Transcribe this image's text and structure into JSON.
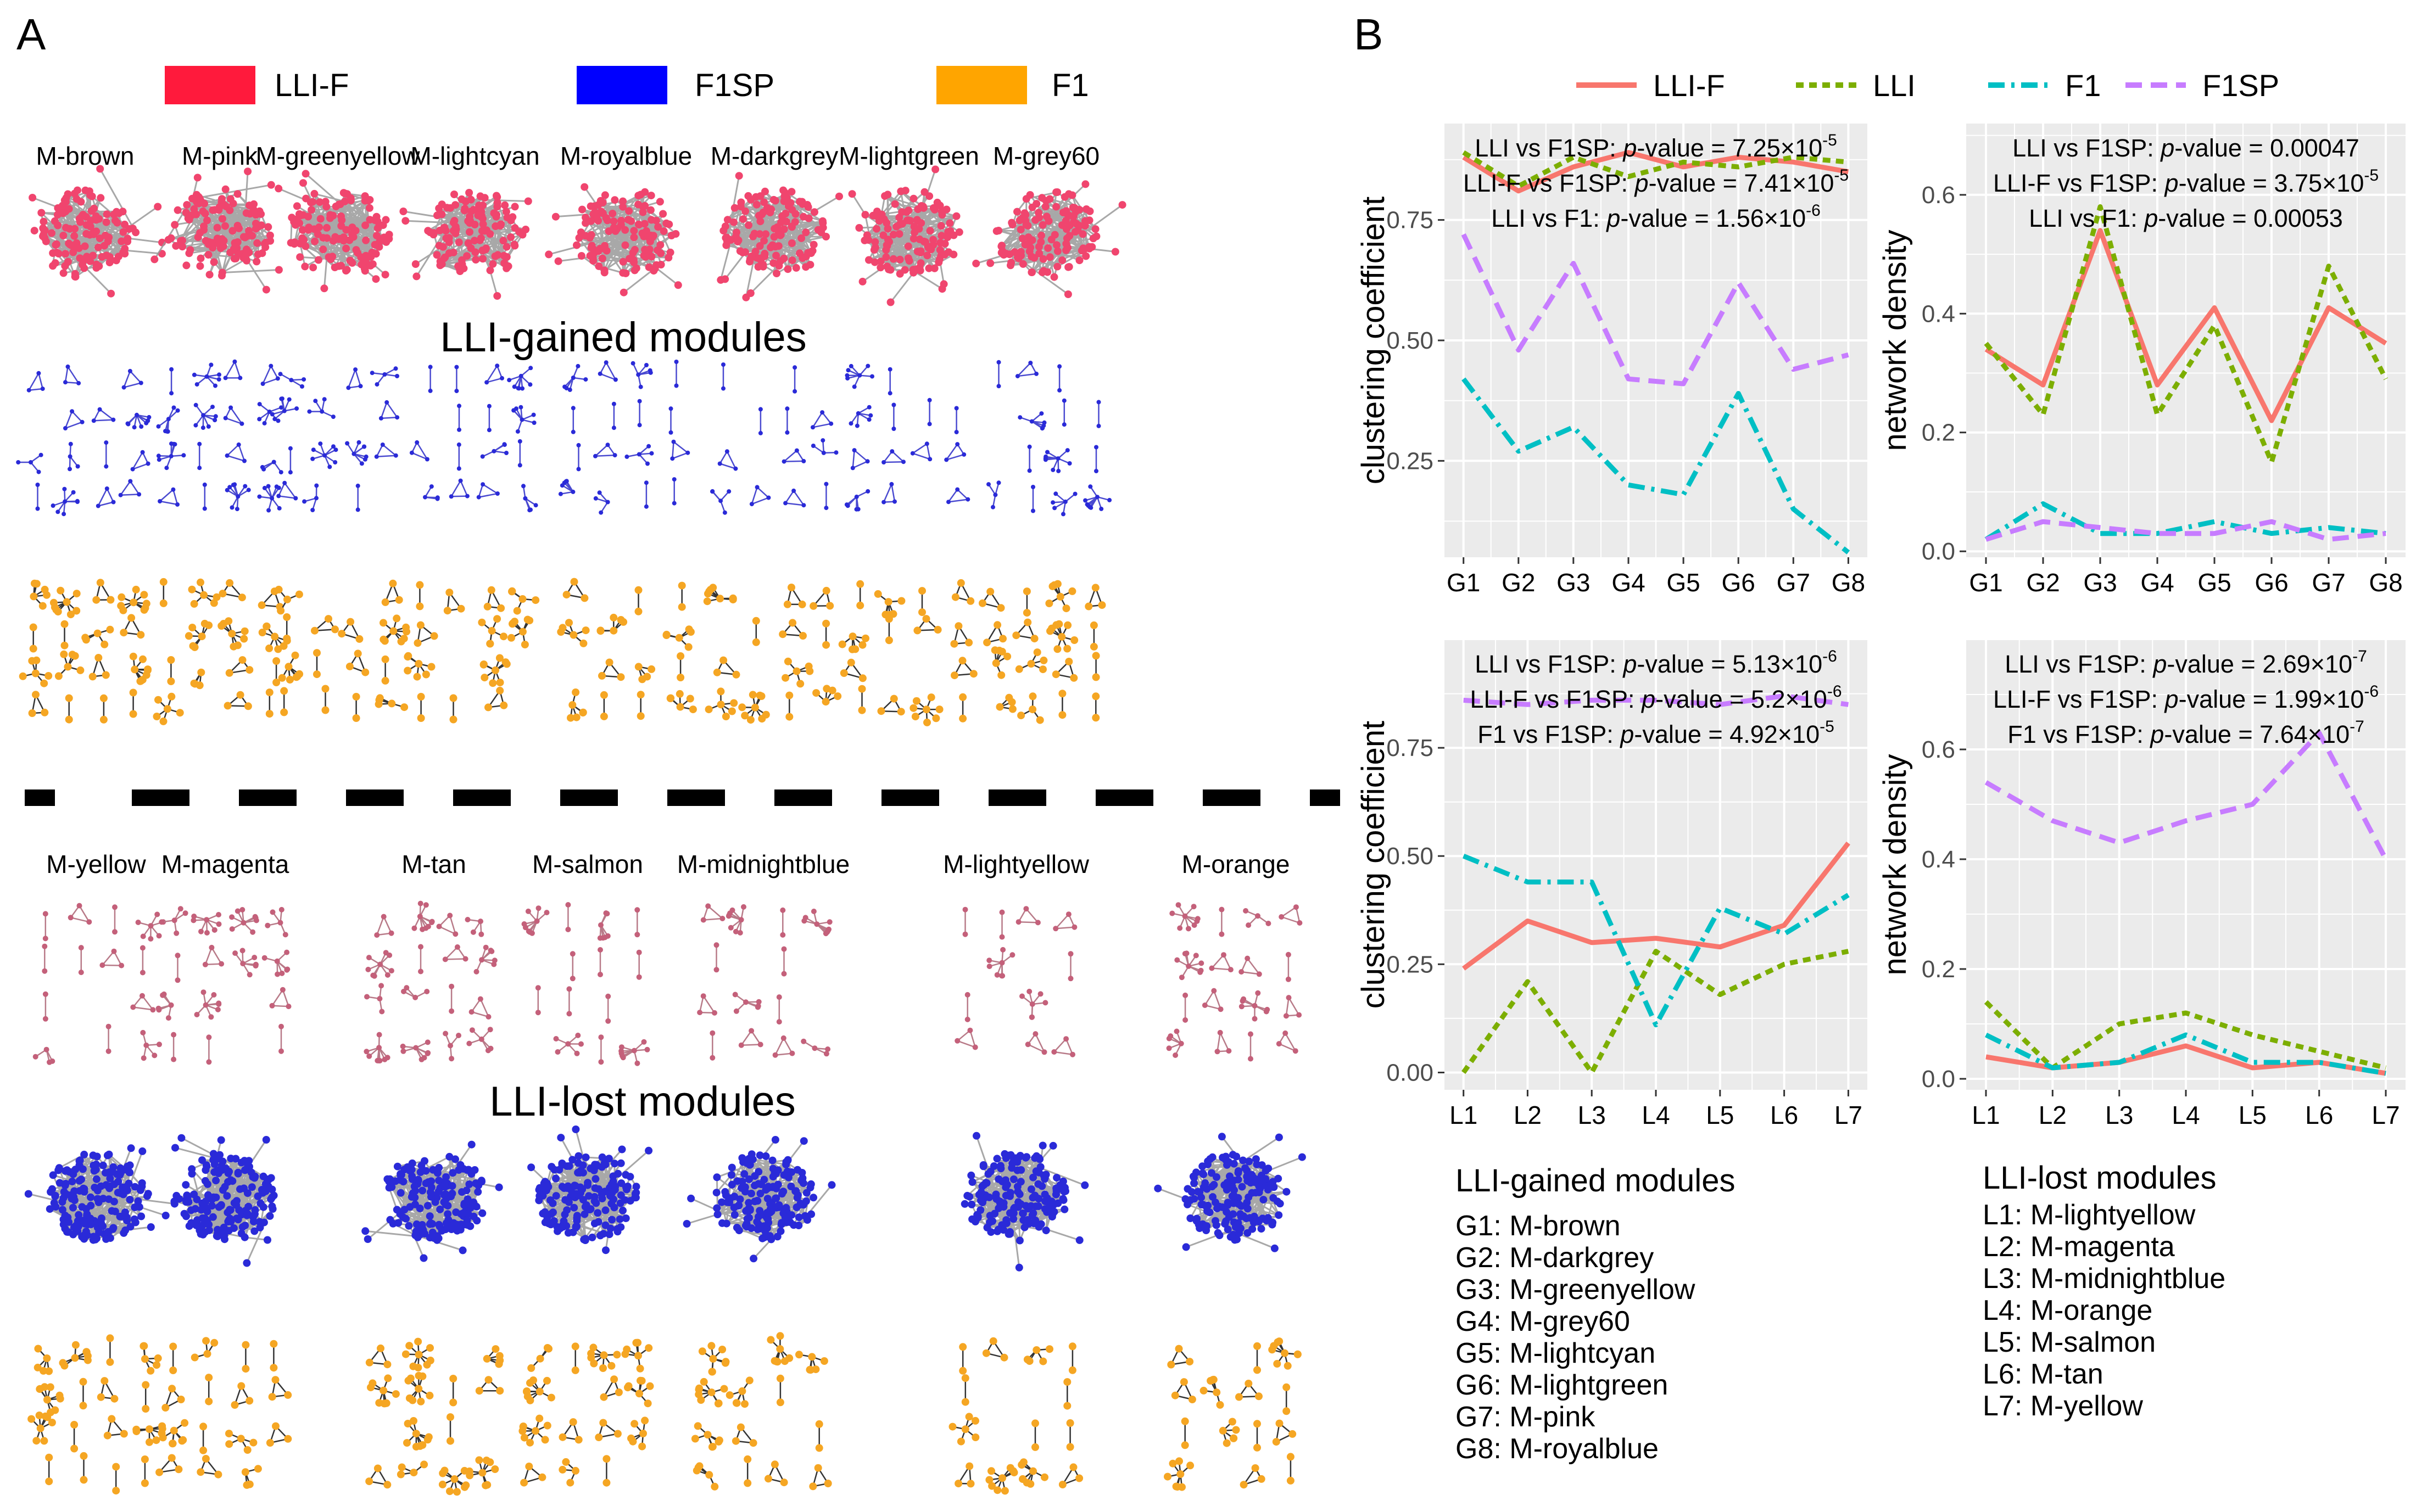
{
  "panel_a": {
    "panel_label": "A",
    "legend": [
      {
        "label": "LLI-F",
        "color": "#ff1a3c"
      },
      {
        "label": "F1SP",
        "color": "#0000ff"
      },
      {
        "label": "F1",
        "color": "#ffa500"
      }
    ],
    "gained_title": "LLI-gained modules",
    "lost_title": "LLI-lost modules",
    "gained_modules": [
      "M-brown",
      "M-pink",
      "M-greenyellow",
      "M-lightcyan",
      "M-royalblue",
      "M-darkgrey",
      "M-lightgreen",
      "M-grey60"
    ],
    "lost_modules": [
      "M-yellow",
      "M-magenta",
      "M-tan",
      "M-salmon",
      "M-midnightblue",
      "M-lightyellow",
      "M-orange"
    ],
    "colors": {
      "lli_f_node": "#f0456e",
      "f1sp_node": "#2a2ad8",
      "f1_node": "#f5a623",
      "lost_sparse_node": "#c4607a",
      "edge": "#999999"
    }
  },
  "panel_b": {
    "panel_label": "B",
    "legend": [
      {
        "label": "LLI-F",
        "color": "#f8766d",
        "dash": "solid"
      },
      {
        "label": "LLI",
        "color": "#7cae00",
        "dash": "dotted"
      },
      {
        "label": "F1",
        "color": "#00bfc4",
        "dash": "dashdot"
      },
      {
        "label": "F1SP",
        "color": "#c77cff",
        "dash": "dashed"
      }
    ],
    "gained_legend_title": "LLI-gained modules",
    "gained_legend": [
      "G1: M-brown",
      "G2: M-darkgrey",
      "G3: M-greenyellow",
      "G4: M-grey60",
      "G5: M-lightcyan",
      "G6: M-lightgreen",
      "G7: M-pink",
      "G8: M-royalblue"
    ],
    "lost_legend_title": "LLI-lost modules",
    "lost_legend": [
      "L1: M-lightyellow",
      "L2: M-magenta",
      "L3: M-midnightblue",
      "L4: M-orange",
      "L5: M-salmon",
      "L6: M-tan",
      "L7: M-yellow"
    ]
  },
  "chart_data": [
    {
      "type": "line",
      "ylabel": "clustering coefficient",
      "categories": [
        "G1",
        "G2",
        "G3",
        "G4",
        "G5",
        "G6",
        "G7",
        "G8"
      ],
      "ylim": [
        0.05,
        0.95
      ],
      "yticks": [
        "0.25",
        "0.50",
        "0.75"
      ],
      "ytick_values": [
        0.25,
        0.5,
        0.75
      ],
      "grid": true,
      "annotations": [
        {
          "pair": "LLI vs F1SP:",
          "pv": "p",
          "rest": "-value = 7.25×10",
          "exp": "-5"
        },
        {
          "pair": "LLI-F vs F1SP:",
          "pv": "p",
          "rest": "-value = 7.41×10",
          "exp": "-5"
        },
        {
          "pair": "LLI vs F1:",
          "pv": "p",
          "rest": "-value = 1.56×10",
          "exp": "-6"
        }
      ],
      "series": [
        {
          "name": "LLI-F",
          "values": [
            0.88,
            0.81,
            0.86,
            0.89,
            0.86,
            0.88,
            0.87,
            0.85
          ]
        },
        {
          "name": "LLI",
          "values": [
            0.89,
            0.82,
            0.88,
            0.84,
            0.87,
            0.86,
            0.88,
            0.87
          ]
        },
        {
          "name": "F1",
          "values": [
            0.42,
            0.27,
            0.32,
            0.2,
            0.18,
            0.39,
            0.15,
            0.06
          ]
        },
        {
          "name": "F1SP",
          "values": [
            0.72,
            0.48,
            0.66,
            0.42,
            0.41,
            0.62,
            0.44,
            0.47
          ]
        }
      ]
    },
    {
      "type": "line",
      "ylabel": "network density",
      "categories": [
        "G1",
        "G2",
        "G3",
        "G4",
        "G5",
        "G6",
        "G7",
        "G8"
      ],
      "ylim": [
        -0.01,
        0.72
      ],
      "yticks": [
        "0.0",
        "0.2",
        "0.4",
        "0.6"
      ],
      "ytick_values": [
        0,
        0.2,
        0.4,
        0.6
      ],
      "grid": true,
      "annotations": [
        {
          "pair": "LLI vs F1SP:",
          "pv": "p",
          "rest": "-value = 0.00047",
          "exp": ""
        },
        {
          "pair": "LLI-F vs F1SP:",
          "pv": "p",
          "rest": "-value = 3.75×10",
          "exp": "-5"
        },
        {
          "pair": "LLI vs F1:",
          "pv": "p",
          "rest": "-value = 0.00053",
          "exp": ""
        }
      ],
      "series": [
        {
          "name": "LLI-F",
          "values": [
            0.34,
            0.28,
            0.54,
            0.28,
            0.41,
            0.22,
            0.41,
            0.35
          ]
        },
        {
          "name": "LLI",
          "values": [
            0.35,
            0.23,
            0.58,
            0.23,
            0.38,
            0.15,
            0.48,
            0.29
          ]
        },
        {
          "name": "F1",
          "values": [
            0.02,
            0.08,
            0.03,
            0.03,
            0.05,
            0.03,
            0.04,
            0.03
          ]
        },
        {
          "name": "F1SP",
          "values": [
            0.02,
            0.05,
            0.04,
            0.03,
            0.03,
            0.05,
            0.02,
            0.03
          ]
        }
      ]
    },
    {
      "type": "line",
      "ylabel": "clustering coefficient",
      "categories": [
        "L1",
        "L2",
        "L3",
        "L4",
        "L5",
        "L6",
        "L7"
      ],
      "ylim": [
        -0.04,
        1.0
      ],
      "yticks": [
        "0.00",
        "0.25",
        "0.50",
        "0.75"
      ],
      "ytick_values": [
        0,
        0.25,
        0.5,
        0.75
      ],
      "grid": true,
      "annotations": [
        {
          "pair": "LLI vs F1SP:",
          "pv": "p",
          "rest": "-value = 5.13×10",
          "exp": "-6"
        },
        {
          "pair": "LLI-F vs F1SP:",
          "pv": "p",
          "rest": "-value = 5.2×10",
          "exp": "-6"
        },
        {
          "pair": "F1 vs F1SP:",
          "pv": "p",
          "rest": "-value = 4.92×10",
          "exp": "-5"
        }
      ],
      "series": [
        {
          "name": "LLI-F",
          "values": [
            0.24,
            0.35,
            0.3,
            0.31,
            0.29,
            0.34,
            0.53
          ]
        },
        {
          "name": "LLI",
          "values": [
            0.0,
            0.21,
            0.0,
            0.28,
            0.18,
            0.25,
            0.28
          ]
        },
        {
          "name": "F1",
          "values": [
            0.5,
            0.44,
            0.44,
            0.11,
            0.38,
            0.32,
            0.41
          ]
        },
        {
          "name": "F1SP",
          "values": [
            0.86,
            0.85,
            0.86,
            0.86,
            0.85,
            0.87,
            0.85
          ]
        }
      ]
    },
    {
      "type": "line",
      "ylabel": "network density",
      "categories": [
        "L1",
        "L2",
        "L3",
        "L4",
        "L5",
        "L6",
        "L7"
      ],
      "ylim": [
        -0.02,
        0.8
      ],
      "yticks": [
        "0.0",
        "0.2",
        "0.4",
        "0.6"
      ],
      "ytick_values": [
        0,
        0.2,
        0.4,
        0.6
      ],
      "grid": true,
      "annotations": [
        {
          "pair": "LLI vs F1SP:",
          "pv": "p",
          "rest": "-value = 2.69×10",
          "exp": "-7"
        },
        {
          "pair": "LLI-F vs F1SP:",
          "pv": "p",
          "rest": "-value = 1.99×10",
          "exp": "-6"
        },
        {
          "pair": "F1 vs F1SP:",
          "pv": "p",
          "rest": "-value = 7.64×10",
          "exp": "-7"
        }
      ],
      "series": [
        {
          "name": "LLI-F",
          "values": [
            0.04,
            0.02,
            0.03,
            0.06,
            0.02,
            0.03,
            0.01
          ]
        },
        {
          "name": "LLI",
          "values": [
            0.14,
            0.02,
            0.1,
            0.12,
            0.08,
            0.05,
            0.02
          ]
        },
        {
          "name": "F1",
          "values": [
            0.08,
            0.02,
            0.03,
            0.08,
            0.03,
            0.03,
            0.01
          ]
        },
        {
          "name": "F1SP",
          "values": [
            0.54,
            0.47,
            0.43,
            0.47,
            0.5,
            0.63,
            0.4
          ]
        }
      ]
    }
  ]
}
